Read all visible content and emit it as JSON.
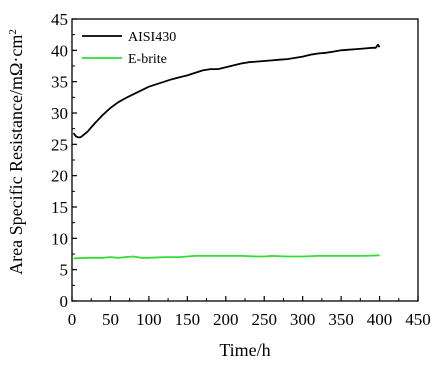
{
  "chart_data": {
    "type": "line",
    "xlabel": "Time/h",
    "ylabel": "Area Specific Resistance/mΩ·cm",
    "ylabel_superscript": "2",
    "xlim": [
      0,
      450
    ],
    "ylim": [
      0,
      45
    ],
    "x_ticks": [
      0,
      50,
      100,
      150,
      200,
      250,
      300,
      350,
      400,
      450
    ],
    "y_ticks": [
      0,
      5,
      10,
      15,
      20,
      25,
      30,
      35,
      40,
      45
    ],
    "grid": false,
    "legend_position": "top-left",
    "series": [
      {
        "name": "AISI430",
        "color": "#000000",
        "x": [
          2,
          5,
          8,
          10,
          12,
          15,
          20,
          25,
          30,
          40,
          50,
          60,
          70,
          80,
          90,
          100,
          110,
          120,
          130,
          140,
          150,
          160,
          170,
          180,
          190,
          200,
          210,
          220,
          230,
          240,
          250,
          260,
          270,
          280,
          290,
          300,
          310,
          320,
          330,
          340,
          350,
          360,
          370,
          380,
          390,
          395,
          398,
          400
        ],
        "y": [
          26.8,
          26.3,
          26.1,
          26.1,
          26.2,
          26.5,
          27.0,
          27.7,
          28.4,
          29.7,
          30.8,
          31.7,
          32.4,
          33.0,
          33.6,
          34.2,
          34.6,
          35.0,
          35.4,
          35.7,
          36.0,
          36.4,
          36.8,
          37.0,
          37.0,
          37.3,
          37.6,
          37.9,
          38.1,
          38.2,
          38.3,
          38.4,
          38.5,
          38.6,
          38.8,
          39.0,
          39.3,
          39.5,
          39.6,
          39.8,
          40.0,
          40.1,
          40.2,
          40.3,
          40.4,
          40.4,
          40.9,
          40.5
        ]
      },
      {
        "name": "E-brite",
        "color": "#33dd33",
        "x": [
          2,
          20,
          40,
          50,
          60,
          70,
          80,
          90,
          100,
          120,
          140,
          150,
          160,
          180,
          200,
          220,
          240,
          250,
          260,
          280,
          300,
          320,
          340,
          360,
          380,
          400
        ],
        "y": [
          6.8,
          6.9,
          6.9,
          7.0,
          6.9,
          7.0,
          7.1,
          6.9,
          6.9,
          7.0,
          7.0,
          7.1,
          7.2,
          7.2,
          7.2,
          7.2,
          7.1,
          7.1,
          7.2,
          7.1,
          7.1,
          7.2,
          7.2,
          7.2,
          7.2,
          7.3
        ]
      }
    ]
  }
}
